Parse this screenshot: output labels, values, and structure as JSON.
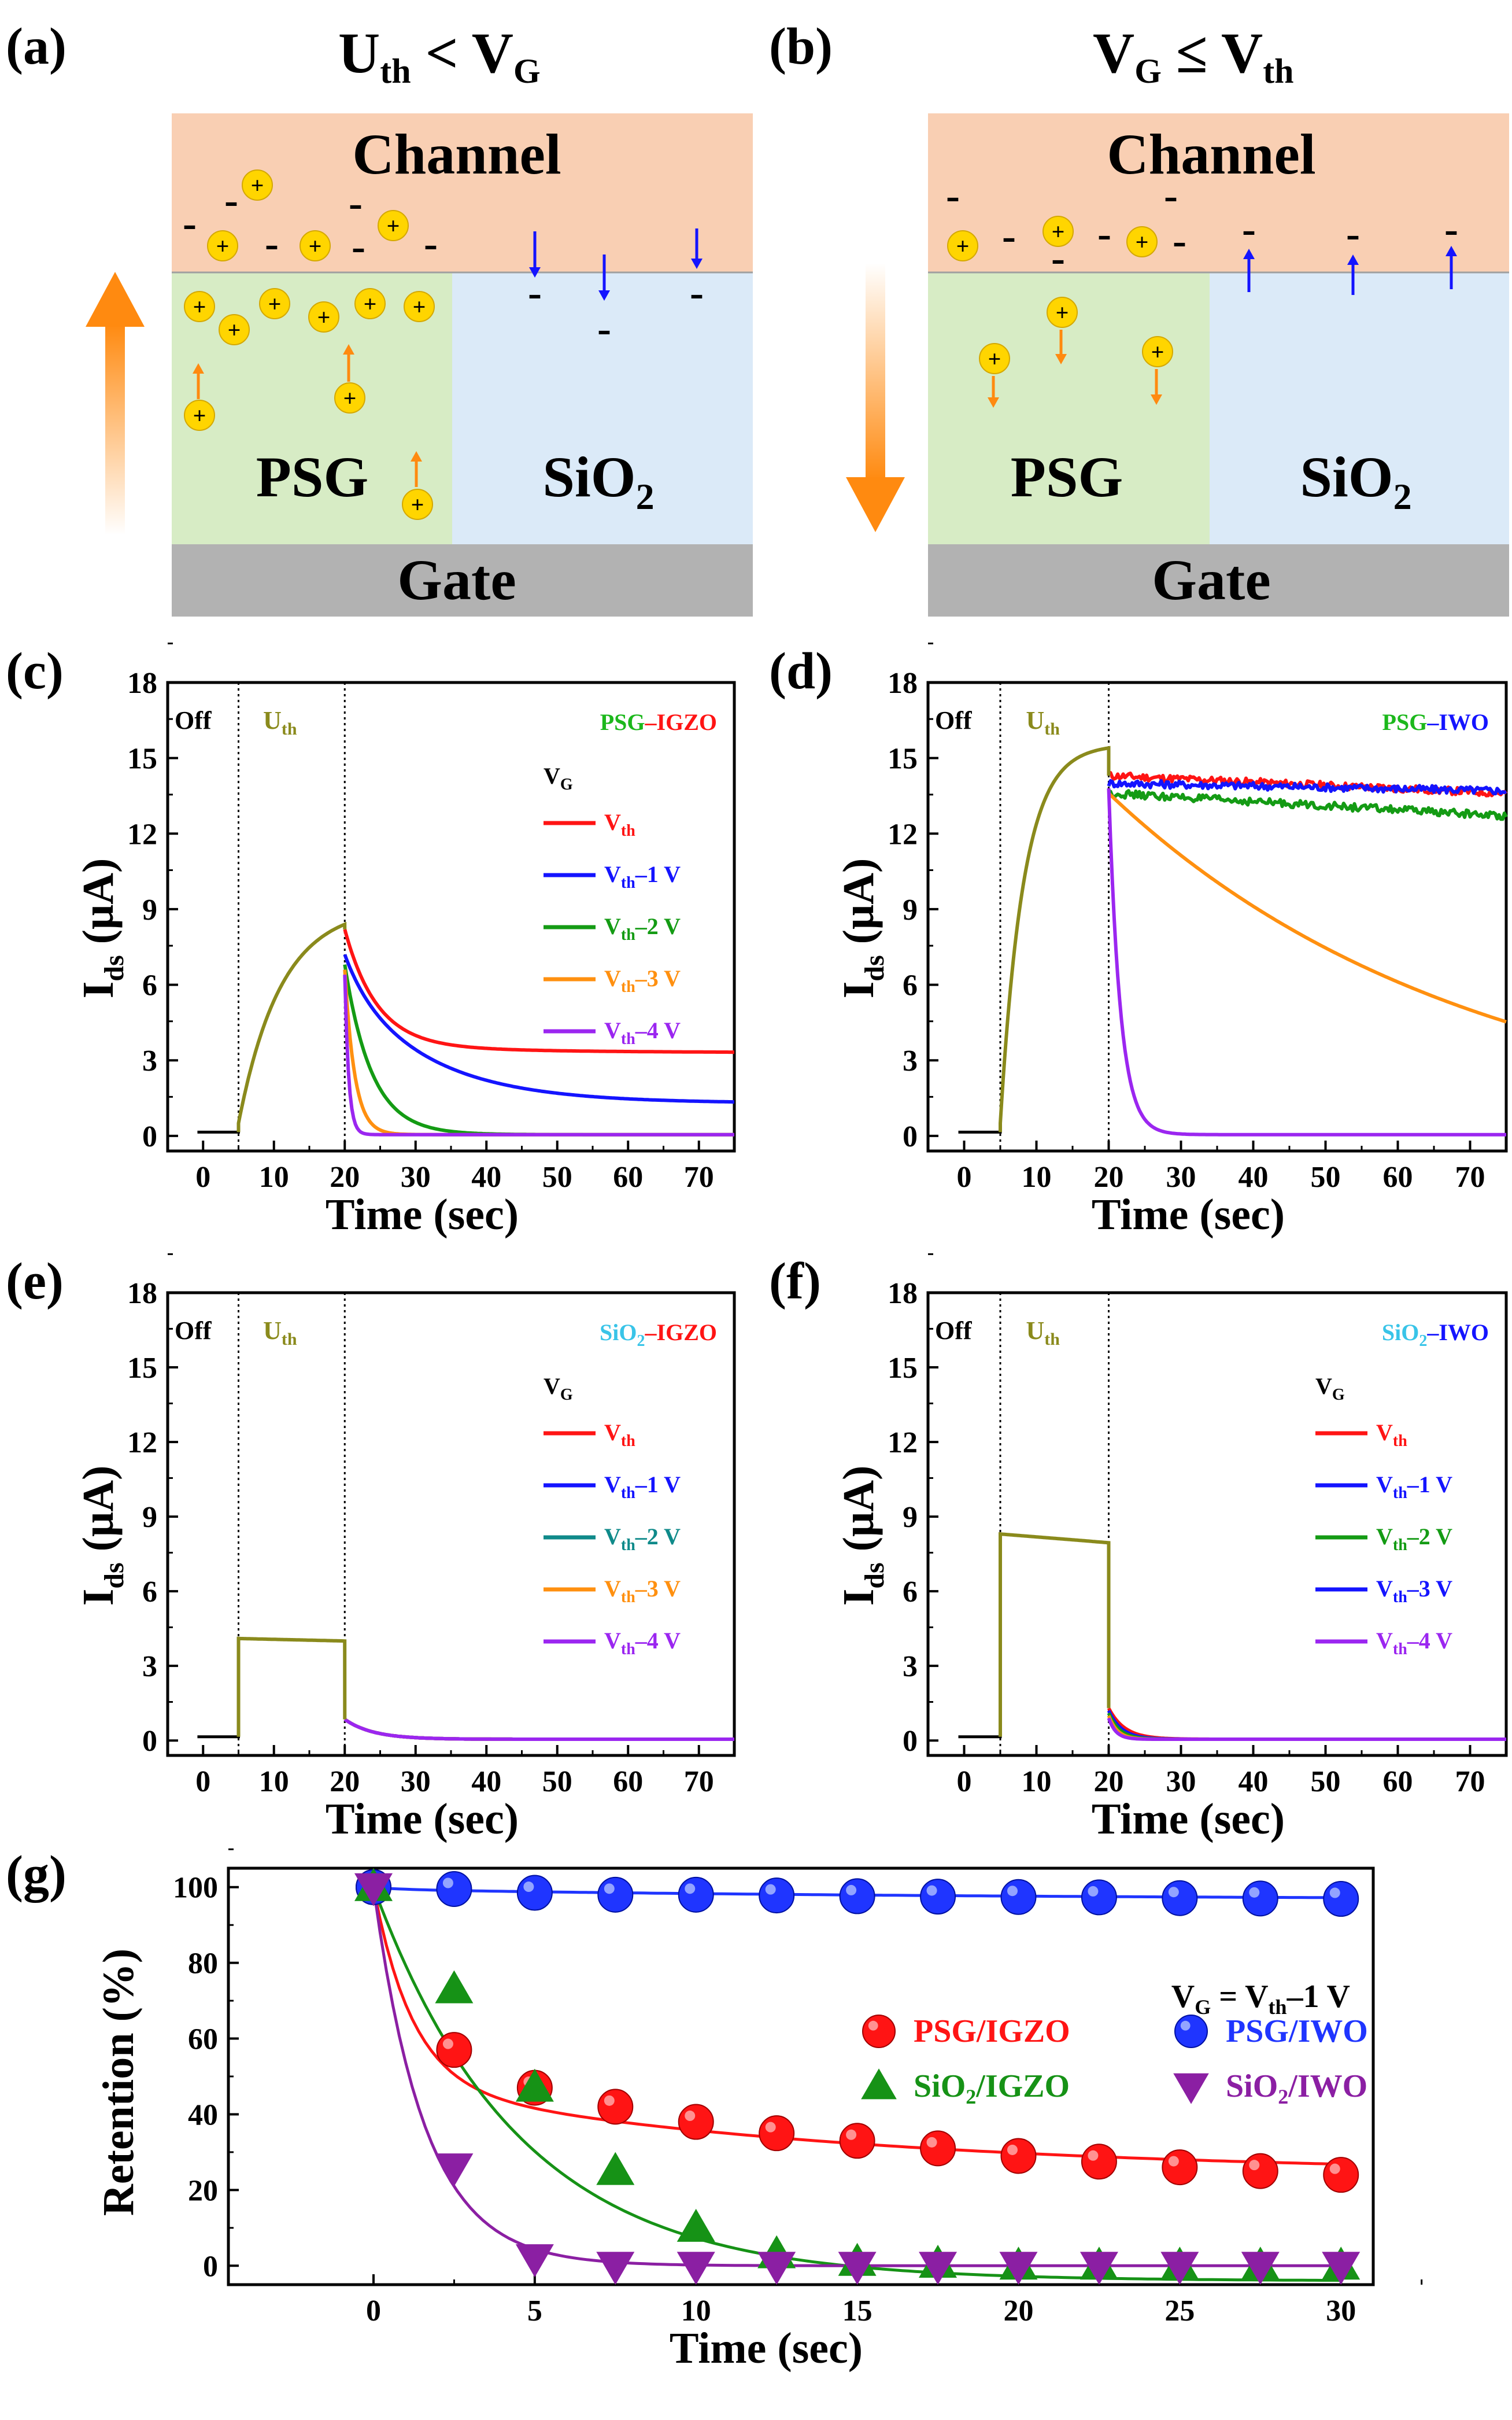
{
  "figure": {
    "panels": {
      "a": "(a)",
      "b": "(b)",
      "c": "(c)",
      "d": "(d)",
      "e": "(e)",
      "f": "(f)",
      "g": "(g)"
    }
  },
  "diagram_a": {
    "condition": {
      "left": "U",
      "left_sub": "th",
      "op": " < ",
      "right": "V",
      "right_sub": "G"
    },
    "channel": "Channel",
    "psg": "PSG",
    "sio2": "SiO",
    "sio2_sub": "2",
    "gate": "Gate",
    "plus": "+",
    "minus": "-",
    "arrow_direction": "up"
  },
  "diagram_b": {
    "condition": {
      "left": "V",
      "left_sub": "G",
      "op": " ≤ ",
      "right": "V",
      "right_sub": "th"
    },
    "channel": "Channel",
    "psg": "PSG",
    "sio2": "SiO",
    "sio2_sub": "2",
    "gate": "Gate",
    "plus": "+",
    "minus": "-",
    "arrow_direction": "down"
  },
  "colors": {
    "channel": "#f9cfb3",
    "psg": "#d7ecc5",
    "sio2": "#dbeaf8",
    "gate": "#b2b2b2",
    "ion": "#ffd500",
    "arrow": "#ff8a10",
    "uth_curve": "#8a8a1c",
    "vth": "#ff1414",
    "vth1": "#1414ff",
    "vth2": "#149b14",
    "vth2_e": "#0f8a8a",
    "vth3": "#ff9010",
    "vth4": "#9b26f0",
    "psg_word": "#1cb81c",
    "sio2_word": "#39c4e8",
    "igzo_word": "#ff1414",
    "iwo_word": "#1414ff",
    "ret_psg_igzo": "#ff1414",
    "ret_psg_iwo": "#1f35ff",
    "ret_sio2_igzo": "#169216",
    "ret_sio2_iwo": "#8b1fa3"
  },
  "chart_data": [
    {
      "id": "c",
      "type": "line",
      "ylabel_main": "I",
      "ylabel_sub": "ds",
      "ylabel_unit": " (μA)",
      "xlabel": "Time (sec)",
      "xlim": [
        -5,
        75
      ],
      "ylim": [
        -0.6,
        18
      ],
      "xticks": [
        "0",
        "10",
        "20",
        "30",
        "40",
        "50",
        "60",
        "70"
      ],
      "yticks": [
        "0",
        "3",
        "6",
        "9",
        "12",
        "15",
        "18"
      ],
      "phases": {
        "off": "Off",
        "uth": "U",
        "uth_sub": "th",
        "boundaries": [
          5,
          20
        ]
      },
      "title_parts": [
        {
          "text": "PSG",
          "color": "psg_word"
        },
        {
          "text": "–",
          "color": "igzo_word"
        },
        {
          "text": "IGZO",
          "color": "igzo_word"
        }
      ],
      "legend_header": {
        "main": "V",
        "sub": "G"
      },
      "legend": [
        {
          "main": "V",
          "sub": "th",
          "rest": "",
          "color": "vth"
        },
        {
          "main": "V",
          "sub": "th",
          "rest": "–1 V",
          "color": "vth1"
        },
        {
          "main": "V",
          "sub": "th",
          "rest": "–2 V",
          "color": "vth2"
        },
        {
          "main": "V",
          "sub": "th",
          "rest": "–3 V",
          "color": "vth3"
        },
        {
          "main": "V",
          "sub": "th",
          "rest": "–4 V",
          "color": "vth4"
        }
      ],
      "off_level": 0.15,
      "uth_curve": {
        "start": 0.5,
        "end": 8.4,
        "shape": "sat",
        "tau": 6
      },
      "decay": [
        {
          "color": "vth",
          "start": 8.2,
          "floor": 3.3,
          "tau": 4.5,
          "mode": "exp2",
          "floor2": 3.6,
          "tau2": 22
        },
        {
          "color": "vth1",
          "start": 7.2,
          "floor": 1.3,
          "tau": 12,
          "mode": "exp2",
          "floor2": 2.4,
          "tau2": 3
        },
        {
          "color": "vth2",
          "start": 6.8,
          "floor": 0.05,
          "tau": 3.8,
          "mode": "exp"
        },
        {
          "color": "vth3",
          "start": 6.6,
          "floor": 0.05,
          "tau": 1.4,
          "mode": "exp"
        },
        {
          "color": "vth4",
          "start": 6.4,
          "floor": 0.05,
          "tau": 0.55,
          "mode": "exp"
        }
      ]
    },
    {
      "id": "d",
      "type": "line",
      "ylabel_main": "I",
      "ylabel_sub": "ds",
      "ylabel_unit": " (μA)",
      "xlabel": "Time (sec)",
      "xlim": [
        -5,
        75
      ],
      "ylim": [
        -0.6,
        18
      ],
      "xticks": [
        "0",
        "10",
        "20",
        "30",
        "40",
        "50",
        "60",
        "70"
      ],
      "yticks": [
        "0",
        "3",
        "6",
        "9",
        "12",
        "15",
        "18"
      ],
      "phases": {
        "off": "Off",
        "uth": "U",
        "uth_sub": "th",
        "boundaries": [
          5,
          20
        ]
      },
      "title_parts": [
        {
          "text": "PSG",
          "color": "psg_word"
        },
        {
          "text": "–",
          "color": "iwo_word"
        },
        {
          "text": "IWO",
          "color": "iwo_word"
        }
      ],
      "legend_header": null,
      "legend": [],
      "off_level": 0.15,
      "uth_curve": {
        "start": 0.5,
        "end": 15.4,
        "shape": "sat",
        "tau": 3.2
      },
      "decay": [
        {
          "color": "vth",
          "start": 14.3,
          "floor": 13.6,
          "tau": 40,
          "mode": "lin",
          "noise": 0.15
        },
        {
          "color": "vth1",
          "start": 14.0,
          "floor": 13.7,
          "tau": 40,
          "mode": "lin",
          "noise": 0.15
        },
        {
          "color": "vth2",
          "start": 13.6,
          "floor": 12.7,
          "tau": 40,
          "mode": "lin",
          "noise": 0.15
        },
        {
          "color": "vth3",
          "start": 13.6,
          "floor": 0.0,
          "tau": 50,
          "mode": "exp"
        },
        {
          "color": "vth4",
          "start": 13.8,
          "floor": 0.05,
          "tau": 1.6,
          "mode": "exp"
        }
      ]
    },
    {
      "id": "e",
      "type": "line",
      "ylabel_main": "I",
      "ylabel_sub": "ds",
      "ylabel_unit": " (μA)",
      "xlabel": "Time (sec)",
      "xlim": [
        -5,
        75
      ],
      "ylim": [
        -0.6,
        18
      ],
      "xticks": [
        "0",
        "10",
        "20",
        "30",
        "40",
        "50",
        "60",
        "70"
      ],
      "yticks": [
        "0",
        "3",
        "6",
        "9",
        "12",
        "15",
        "18"
      ],
      "phases": {
        "off": "Off",
        "uth": "U",
        "uth_sub": "th",
        "boundaries": [
          5,
          20
        ]
      },
      "title_parts": [
        {
          "text": "SiO",
          "color": "sio2_word"
        },
        {
          "text": "2",
          "color": "sio2_word",
          "sub": true
        },
        {
          "text": "–",
          "color": "igzo_word"
        },
        {
          "text": "IGZO",
          "color": "igzo_word"
        }
      ],
      "legend_header": {
        "main": "V",
        "sub": "G"
      },
      "legend": [
        {
          "main": "V",
          "sub": "th",
          "rest": "",
          "color": "vth"
        },
        {
          "main": "V",
          "sub": "th",
          "rest": "–1 V",
          "color": "vth1"
        },
        {
          "main": "V",
          "sub": "th",
          "rest": "–2 V",
          "color": "vth2_e"
        },
        {
          "main": "V",
          "sub": "th",
          "rest": "–3 V",
          "color": "vth3"
        },
        {
          "main": "V",
          "sub": "th",
          "rest": "–4 V",
          "color": "vth4"
        }
      ],
      "off_level": 0.15,
      "uth_curve": {
        "start": 4.1,
        "end": 4.0,
        "shape": "flat"
      },
      "decay": [
        {
          "color": "vth",
          "start": 0.85,
          "floor": 0.05,
          "tau": 4,
          "mode": "exp"
        },
        {
          "color": "vth1",
          "start": 0.85,
          "floor": 0.05,
          "tau": 4,
          "mode": "exp"
        },
        {
          "color": "vth2_e",
          "start": 0.85,
          "floor": 0.05,
          "tau": 4,
          "mode": "exp"
        },
        {
          "color": "vth3",
          "start": 0.85,
          "floor": 0.05,
          "tau": 4,
          "mode": "exp"
        },
        {
          "color": "vth4",
          "start": 0.85,
          "floor": 0.05,
          "tau": 4,
          "mode": "exp"
        }
      ]
    },
    {
      "id": "f",
      "type": "line",
      "ylabel_main": "I",
      "ylabel_sub": "ds",
      "ylabel_unit": " (μA)",
      "xlabel": "Time (sec)",
      "xlim": [
        -5,
        75
      ],
      "ylim": [
        -0.6,
        18
      ],
      "xticks": [
        "0",
        "10",
        "20",
        "30",
        "40",
        "50",
        "60",
        "70"
      ],
      "yticks": [
        "0",
        "3",
        "6",
        "9",
        "12",
        "15",
        "18"
      ],
      "phases": {
        "off": "Off",
        "uth": "U",
        "uth_sub": "th",
        "boundaries": [
          5,
          20
        ]
      },
      "title_parts": [
        {
          "text": "SiO",
          "color": "sio2_word"
        },
        {
          "text": "2",
          "color": "sio2_word",
          "sub": true
        },
        {
          "text": "–",
          "color": "iwo_word"
        },
        {
          "text": "IWO",
          "color": "iwo_word"
        }
      ],
      "legend_header": {
        "main": "V",
        "sub": "G"
      },
      "legend": [
        {
          "main": "V",
          "sub": "th",
          "rest": "",
          "color": "vth"
        },
        {
          "main": "V",
          "sub": "th",
          "rest": "–1 V",
          "color": "vth1"
        },
        {
          "main": "V",
          "sub": "th",
          "rest": "–2 V",
          "color": "vth2"
        },
        {
          "main": "V",
          "sub": "th",
          "rest": "–3 V",
          "color": "vth1"
        },
        {
          "main": "V",
          "sub": "th",
          "rest": "–4 V",
          "color": "vth4"
        }
      ],
      "off_level": 0.15,
      "uth_curve": {
        "start": 8.3,
        "end": 7.95,
        "shape": "flat"
      },
      "decay": [
        {
          "color": "vth",
          "start": 1.3,
          "floor": 0.05,
          "tau": 2.2,
          "mode": "exp"
        },
        {
          "color": "vth1",
          "start": 1.2,
          "floor": 0.05,
          "tau": 1.8,
          "mode": "exp"
        },
        {
          "color": "vth2",
          "start": 1.1,
          "floor": 0.05,
          "tau": 1.5,
          "mode": "exp"
        },
        {
          "color": "vth3",
          "start": 1.0,
          "floor": 0.05,
          "tau": 1.2,
          "mode": "exp"
        },
        {
          "color": "vth4",
          "start": 0.9,
          "floor": 0.05,
          "tau": 1.0,
          "mode": "exp"
        }
      ]
    },
    {
      "id": "g",
      "type": "scatter",
      "ylabel": "Retention (%)",
      "xlabel": "Time (sec)",
      "xlim": [
        -4.5,
        31
      ],
      "ylim": [
        -5,
        105
      ],
      "xticks": [
        0,
        5,
        10,
        15,
        20,
        25,
        30
      ],
      "yticks": [
        0,
        20,
        40,
        60,
        80,
        100
      ],
      "annotation": {
        "a": "V",
        "a_sub": "G",
        "b": " = V",
        "b_sub": "th",
        "c": "–1 V"
      },
      "series": [
        {
          "name": "PSG/IGZO",
          "parts": [
            {
              "t": "PSG/IGZO"
            }
          ],
          "color": "ret_psg_igzo",
          "marker": "circle",
          "x": [
            0,
            2.5,
            5,
            7.5,
            10,
            12.5,
            15,
            17.5,
            20,
            22.5,
            25,
            27.5,
            30
          ],
          "y": [
            100,
            57,
            47,
            42,
            38,
            35,
            33,
            31,
            29,
            27.5,
            26,
            25,
            24
          ],
          "fit": {
            "A1": 52,
            "t1": 1.2,
            "A2": 24,
            "t2": 14,
            "y0": 24
          }
        },
        {
          "name": "PSG/IWO",
          "parts": [
            {
              "t": "PSG/IWO"
            }
          ],
          "color": "ret_psg_iwo",
          "marker": "ball",
          "x": [
            0,
            2.5,
            5,
            7.5,
            10,
            12.5,
            15,
            17.5,
            20,
            22.5,
            25,
            27.5,
            30
          ],
          "y": [
            100,
            99.5,
            98.5,
            98,
            98,
            97.8,
            97.6,
            97.5,
            97.4,
            97.3,
            97.1,
            97,
            96.9
          ],
          "fit": {
            "A1": 0.5,
            "t1": 1,
            "A2": 2.8,
            "t2": 20,
            "y0": 96.6
          }
        },
        {
          "name": "SiO2/IGZO",
          "parts": [
            {
              "t": "SiO"
            },
            {
              "t": "2",
              "sub": true
            },
            {
              "t": "/IGZO"
            }
          ],
          "color": "ret_sio2_igzo",
          "marker": "triangle-up",
          "x": [
            0,
            2.5,
            5,
            7.5,
            10,
            12.5,
            15,
            17.5,
            20,
            22.5,
            25,
            27.5,
            30
          ],
          "y": [
            100,
            73,
            47,
            25,
            10,
            3,
            1,
            0.5,
            0,
            0,
            0,
            0,
            0
          ],
          "fit": {
            "A1": 104,
            "t1": 4.5,
            "A2": 0,
            "t2": 1,
            "y0": -4
          }
        },
        {
          "name": "SiO2/IWO",
          "parts": [
            {
              "t": "SiO"
            },
            {
              "t": "2",
              "sub": true
            },
            {
              "t": "/IWO"
            }
          ],
          "color": "ret_sio2_iwo",
          "marker": "triangle-down",
          "x": [
            0,
            2.5,
            5,
            7.5,
            10,
            12.5,
            15,
            17.5,
            20,
            22.5,
            25,
            27.5,
            30
          ],
          "y": [
            100,
            26,
            2,
            0,
            0,
            0,
            0,
            0,
            0,
            0,
            0,
            0,
            0
          ],
          "fit": {
            "A1": 100,
            "t1": 1.6,
            "A2": 0,
            "t2": 1,
            "y0": 0
          }
        }
      ]
    }
  ]
}
